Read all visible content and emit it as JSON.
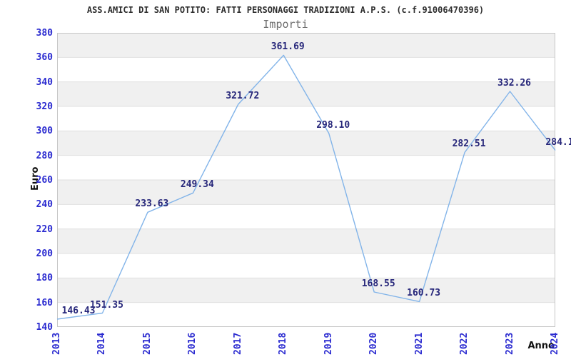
{
  "chart_data": {
    "type": "line",
    "title": "ASS.AMICI DI SAN POTITO: FATTI PERSONAGGI TRADIZIONI A.P.S. (c.f.91006470396)",
    "subtitle": "Importi",
    "xlabel": "Anno",
    "ylabel": "Euro",
    "x": [
      "2013",
      "2014",
      "2015",
      "2016",
      "2017",
      "2018",
      "2019",
      "2020",
      "2021",
      "2022",
      "2023",
      "2024"
    ],
    "series": [
      {
        "name": "Importi",
        "values": [
          146.43,
          151.35,
          233.63,
          249.34,
          321.72,
          361.69,
          298.1,
          168.55,
          160.73,
          282.51,
          332.26,
          284.1
        ],
        "point_labels": [
          "146.43",
          "151.35",
          "233.63",
          "249.34",
          "321.72",
          "361.69",
          "298.10",
          "168.55",
          "160.73",
          "282.51",
          "332.26",
          "284.1"
        ]
      }
    ],
    "ylim": [
      140,
      380
    ],
    "yticks": [
      140,
      160,
      180,
      200,
      220,
      240,
      260,
      280,
      300,
      320,
      340,
      360,
      380
    ],
    "grid": "horizontal-bands-alternating",
    "legend": "none",
    "colors": {
      "line_color": "#82b4e9",
      "tick_color": "#2b2bd0",
      "value_label_color": "#26267a",
      "title_color": "#2e2e2e",
      "subtitle_color": "#6e6e6e",
      "axis_title_color": "#111111",
      "band_fill": "#f0f0f0",
      "grid_line": "#e0e0e0",
      "plot_border": "#c6c6c6",
      "background": "#ffffff"
    }
  }
}
